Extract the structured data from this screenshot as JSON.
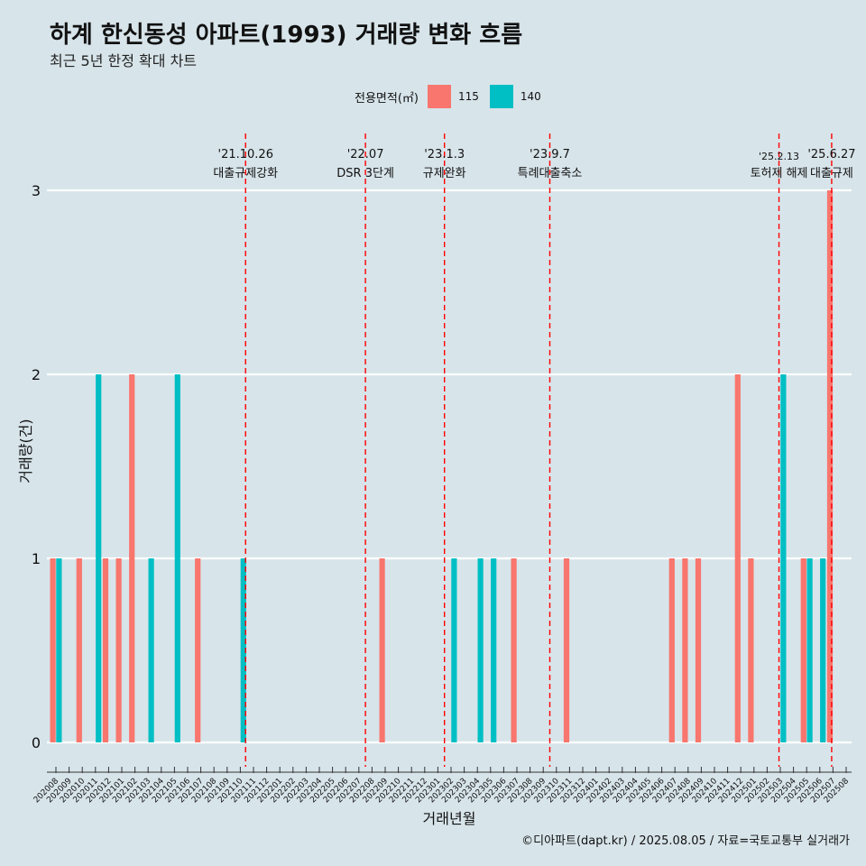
{
  "chart_data": {
    "type": "bar",
    "title": "하계 한신동성 아파트(1993) 거래량 변화 흐름",
    "subtitle": "최근 5년 한정 확대 차트",
    "xlabel": "거래년월",
    "ylabel": "거래량(건)",
    "ylim": [
      0,
      3
    ],
    "y_ticks": [
      "0",
      "1",
      "2",
      "3"
    ],
    "grid": "horizontal",
    "legend_title": "전용면적(㎡)",
    "legend_position": "top",
    "caption": "©디아파트(dapt.kr) / 2025.08.05 / 자료=국토교통부 실거래가",
    "categories": [
      "202008",
      "202009",
      "202010",
      "202011",
      "202012",
      "202101",
      "202102",
      "202103",
      "202104",
      "202105",
      "202106",
      "202107",
      "202108",
      "202109",
      "202110",
      "202111",
      "202112",
      "202201",
      "202202",
      "202203",
      "202204",
      "202205",
      "202206",
      "202207",
      "202208",
      "202209",
      "202210",
      "202211",
      "202212",
      "202301",
      "202302",
      "202303",
      "202304",
      "202305",
      "202306",
      "202307",
      "202308",
      "202309",
      "202310",
      "202311",
      "202312",
      "202401",
      "202402",
      "202403",
      "202404",
      "202405",
      "202406",
      "202407",
      "202408",
      "202409",
      "202410",
      "202411",
      "202412",
      "202501",
      "202502",
      "202503",
      "202504",
      "202505",
      "202506",
      "202507",
      "202508"
    ],
    "series": [
      {
        "name": "115",
        "color": "#f8766d",
        "values": [
          1,
          0,
          1,
          0,
          1,
          1,
          2,
          0,
          0,
          0,
          0,
          1,
          0,
          0,
          0,
          0,
          0,
          0,
          0,
          0,
          0,
          0,
          0,
          0,
          0,
          1,
          0,
          0,
          0,
          0,
          0,
          0,
          0,
          0,
          0,
          1,
          0,
          0,
          0,
          1,
          0,
          0,
          0,
          0,
          0,
          0,
          0,
          1,
          1,
          1,
          0,
          0,
          2,
          1,
          0,
          0,
          0,
          1,
          0,
          3,
          0
        ]
      },
      {
        "name": "140",
        "color": "#00bfc4",
        "values": [
          1,
          0,
          0,
          2,
          0,
          0,
          0,
          1,
          0,
          2,
          0,
          0,
          0,
          0,
          1,
          0,
          0,
          0,
          0,
          0,
          0,
          0,
          0,
          0,
          0,
          0,
          0,
          0,
          0,
          0,
          1,
          0,
          1,
          1,
          0,
          0,
          0,
          0,
          0,
          0,
          0,
          0,
          0,
          0,
          0,
          0,
          0,
          0,
          0,
          0,
          0,
          0,
          0,
          0,
          0,
          2,
          0,
          1,
          1,
          0,
          0
        ]
      }
    ],
    "annotations": [
      {
        "date": "'21.10.26",
        "label": "대출규제강화",
        "pos": 14.4
      },
      {
        "date": "'22.07",
        "label": "DSR 3단계",
        "pos": 23.5
      },
      {
        "date": "'23.1.3",
        "label": "규제완화",
        "pos": 29.5
      },
      {
        "date": "'23.9.7",
        "label": "특례대출축소",
        "pos": 37.5
      },
      {
        "date": "'25.2.13",
        "label": "토허제 해제",
        "pos": 54.9
      },
      {
        "date": "'25.6.27",
        "label": "대출규제",
        "pos": 58.9
      }
    ]
  }
}
